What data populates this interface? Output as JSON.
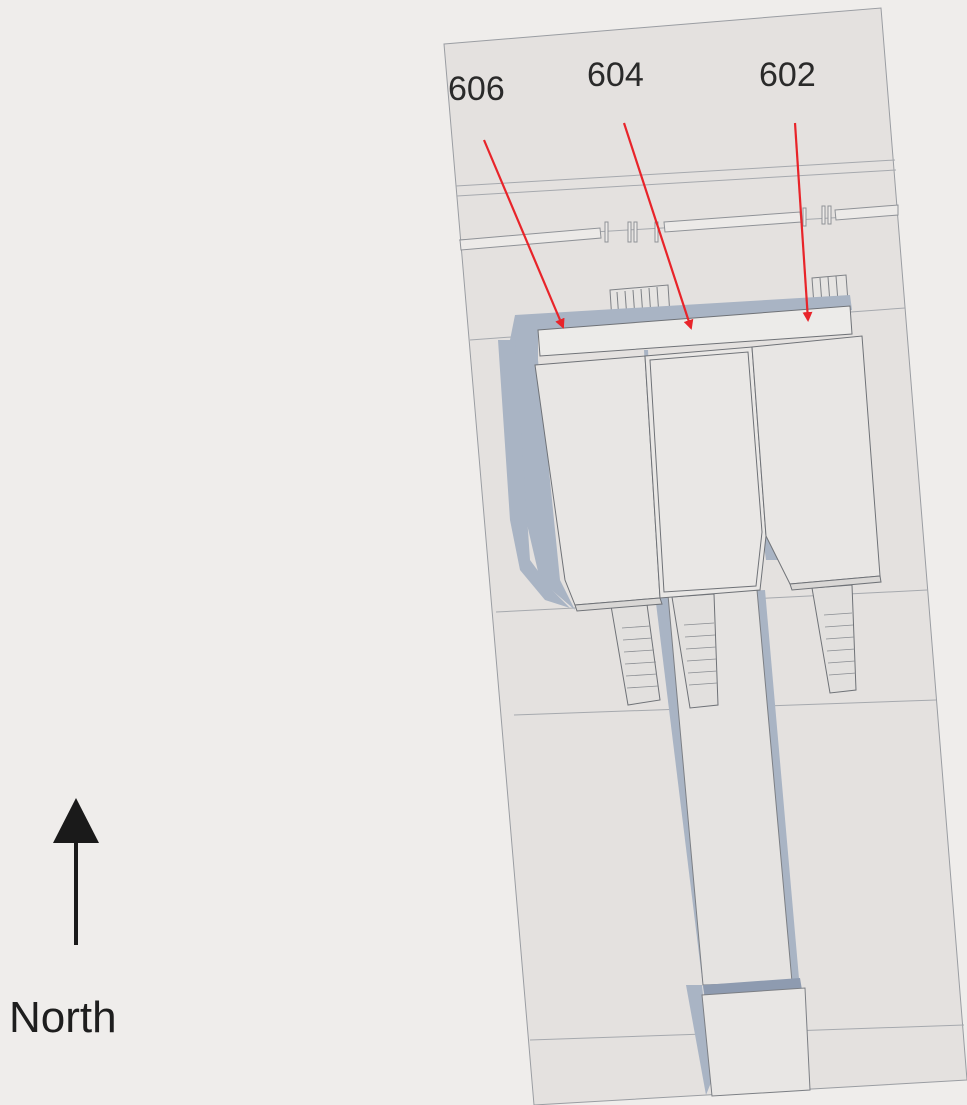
{
  "callouts": [
    {
      "id": "callout-606",
      "label": "606"
    },
    {
      "id": "callout-604",
      "label": "604"
    },
    {
      "id": "callout-602",
      "label": "602"
    }
  ],
  "compass": {
    "label": "North"
  },
  "colors": {
    "background": "#efedeb",
    "ground": "#e4e1df",
    "structure_face": "#e8e6e4",
    "structure_top": "#ecebe9",
    "shadow": "#a9b4c4",
    "edge": "#7c7f84",
    "arrow": "#e8242a",
    "compass_arrow": "#1a1a1a"
  }
}
